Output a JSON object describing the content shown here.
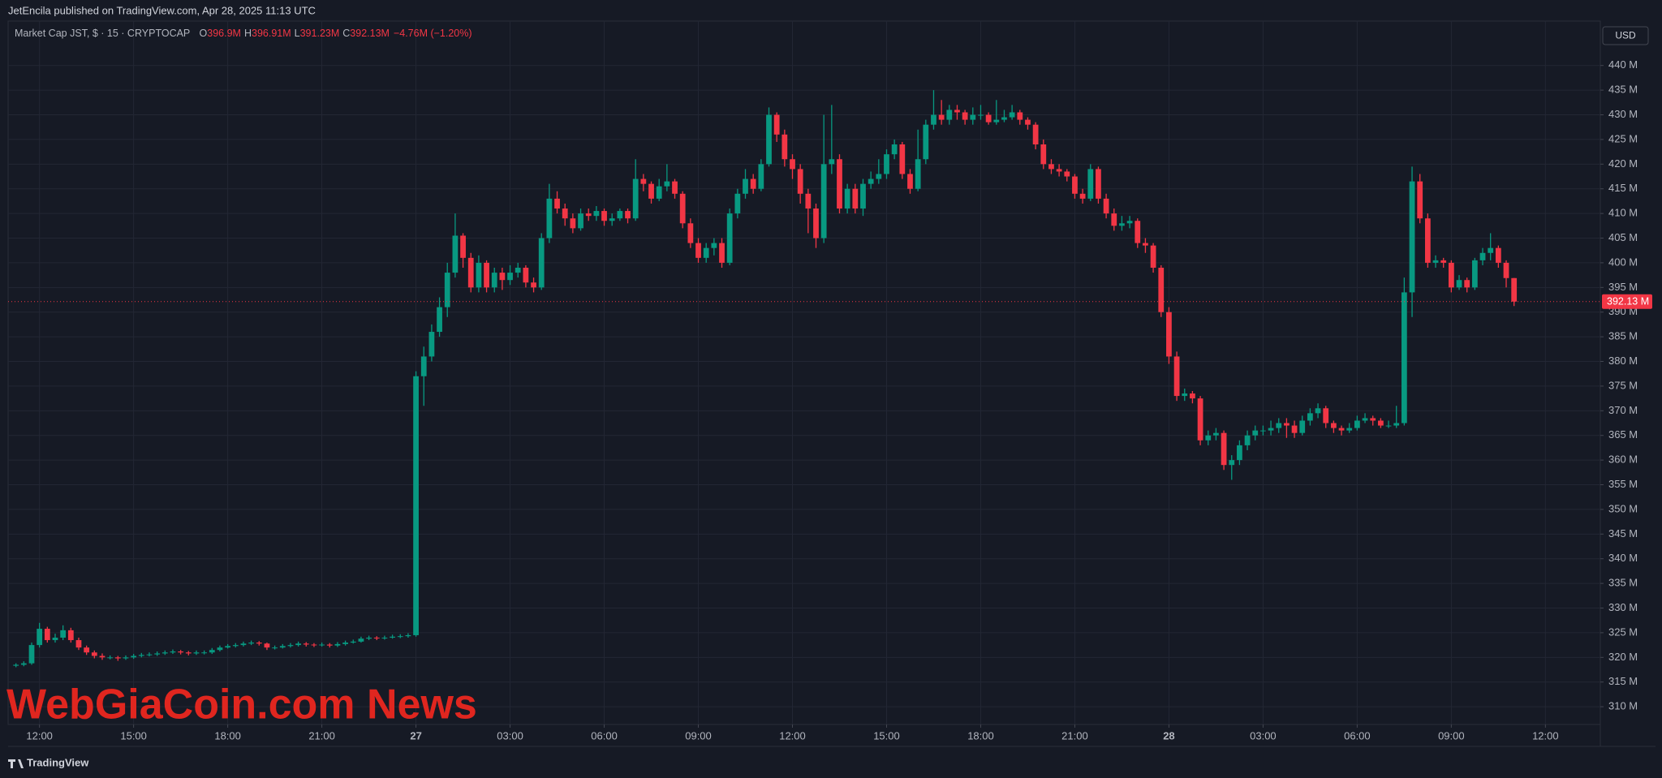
{
  "publisher": "JetEncila published on TradingView.com, Apr 28, 2025 11:13 UTC",
  "brand": "TradingView",
  "watermark": "WebGiaCoin.com News",
  "currency": "USD",
  "chart_data": {
    "type": "candlestick",
    "title": "Market Cap JST, $ · 15 · CRYPTOCAP",
    "ohlc_legend": [
      {
        "key": "O",
        "value": "396.9M"
      },
      {
        "key": "H",
        "value": "396.91M"
      },
      {
        "key": "L",
        "value": "391.23M"
      },
      {
        "key": "C",
        "value": "392.13M"
      }
    ],
    "change": "−4.76M (−1.20%)",
    "up_color": "#089981",
    "down_color": "#f23645",
    "last_price": {
      "value": 392.13,
      "label": "392.13 M"
    },
    "xlim": [
      -1,
      202
    ],
    "xticks": [
      {
        "value": 3,
        "label": "12:00"
      },
      {
        "value": 15,
        "label": "15:00"
      },
      {
        "value": 27,
        "label": "18:00"
      },
      {
        "value": 39,
        "label": "21:00"
      },
      {
        "value": 51,
        "label": "27"
      },
      {
        "value": 63,
        "label": "03:00"
      },
      {
        "value": 75,
        "label": "06:00"
      },
      {
        "value": 87,
        "label": "09:00"
      },
      {
        "value": 99,
        "label": "12:00"
      },
      {
        "value": 111,
        "label": "15:00"
      },
      {
        "value": 123,
        "label": "18:00"
      },
      {
        "value": 135,
        "label": "21:00"
      },
      {
        "value": 147,
        "label": "28"
      },
      {
        "value": 159,
        "label": "03:00"
      },
      {
        "value": 171,
        "label": "06:00"
      },
      {
        "value": 183,
        "label": "09:00"
      },
      {
        "value": 195,
        "label": "12:00"
      }
    ],
    "ylim": [
      306.4,
      449
    ],
    "yticks": [
      {
        "value": 310,
        "label": "310 M"
      },
      {
        "value": 315,
        "label": "315 M"
      },
      {
        "value": 320,
        "label": "320 M"
      },
      {
        "value": 325,
        "label": "325 M"
      },
      {
        "value": 330,
        "label": "330 M"
      },
      {
        "value": 335,
        "label": "335 M"
      },
      {
        "value": 340,
        "label": "340 M"
      },
      {
        "value": 345,
        "label": "345 M"
      },
      {
        "value": 350,
        "label": "350 M"
      },
      {
        "value": 355,
        "label": "355 M"
      },
      {
        "value": 360,
        "label": "360 M"
      },
      {
        "value": 365,
        "label": "365 M"
      },
      {
        "value": 370,
        "label": "370 M"
      },
      {
        "value": 375,
        "label": "375 M"
      },
      {
        "value": 380,
        "label": "380 M"
      },
      {
        "value": 385,
        "label": "385 M"
      },
      {
        "value": 390,
        "label": "390 M"
      },
      {
        "value": 395,
        "label": "395 M"
      },
      {
        "value": 400,
        "label": "400 M"
      },
      {
        "value": 405,
        "label": "405 M"
      },
      {
        "value": 410,
        "label": "410 M"
      },
      {
        "value": 415,
        "label": "415 M"
      },
      {
        "value": 420,
        "label": "420 M"
      },
      {
        "value": 425,
        "label": "425 M"
      },
      {
        "value": 430,
        "label": "430 M"
      },
      {
        "value": 435,
        "label": "435 M"
      },
      {
        "value": 440,
        "label": "440 M"
      }
    ],
    "grid": true,
    "open": [
      318.3,
      318.5,
      318.8,
      322.5,
      325.8,
      323.5,
      324.0,
      325.5,
      323.5,
      322.0,
      321.0,
      320.3,
      320.0,
      320.0,
      319.8,
      320.0,
      320.3,
      320.5,
      320.6,
      320.8,
      321.0,
      321.2,
      321.0,
      320.8,
      321.0,
      321.0,
      321.5,
      322.0,
      322.3,
      322.5,
      322.8,
      323.0,
      322.8,
      322.0,
      322.0,
      322.3,
      322.5,
      322.8,
      322.6,
      322.5,
      322.6,
      322.4,
      322.7,
      323.0,
      323.2,
      323.8,
      324.0,
      323.9,
      324.0,
      324.2,
      324.3,
      324.5,
      377.0,
      381.0,
      386.0,
      391.0,
      398.0,
      405.5,
      401.0,
      395.0,
      400.0,
      395.0,
      398.0,
      396.5,
      398.0,
      399.0,
      396.0,
      395.0,
      405.0,
      413.0,
      411.0,
      409.0,
      407.0,
      410.0,
      409.5,
      410.5,
      408.5,
      409.0,
      410.5,
      409.0,
      417.0,
      416.0,
      413.0,
      415.5,
      416.5,
      414.0,
      408.0,
      404.0,
      401.0,
      403.0,
      404.0,
      400.0,
      410.0,
      414.0,
      417.0,
      415.0,
      420.0,
      430.0,
      426.0,
      421.0,
      419.0,
      414.0,
      411.0,
      405.0,
      420.0,
      421.0,
      411.0,
      415.0,
      411.0,
      416.0,
      417.0,
      418.0,
      422.0,
      424.0,
      418.0,
      415.0,
      421.0,
      428.0,
      430.0,
      429.0,
      431.0,
      430.5,
      429.0,
      430.0,
      430.0,
      428.5,
      429.0,
      429.5,
      430.5,
      429.0,
      428.0,
      424.0,
      420.0,
      419.0,
      418.5,
      417.5,
      414.0,
      413.0,
      419.0,
      413.0,
      410.0,
      407.5,
      408.0,
      408.5,
      404.0,
      403.5,
      399.0,
      390.0,
      381.0,
      373.0,
      373.5,
      372.5,
      364.0,
      365.0,
      365.5,
      359.0,
      360.0,
      363.0,
      365.0,
      366.0,
      366.0,
      366.5,
      367.5,
      367.0,
      365.5,
      368.0,
      369.5,
      370.5,
      367.5,
      366.5,
      366.0,
      366.5,
      368.0,
      368.5,
      368.0,
      367.0,
      367.0,
      367.5,
      394.0,
      416.5,
      409.0,
      400.0,
      400.5,
      400.0,
      395.0,
      396.5,
      395.0,
      400.5,
      402.0,
      403.0,
      400.0,
      396.9
    ],
    "high": [
      318.8,
      319.2,
      323.0,
      327.0,
      326.2,
      324.8,
      326.5,
      326.0,
      324.0,
      322.4,
      321.4,
      320.8,
      320.4,
      320.3,
      320.4,
      320.7,
      320.9,
      321.0,
      321.2,
      321.4,
      321.6,
      321.5,
      321.3,
      321.4,
      321.4,
      321.9,
      322.4,
      322.7,
      322.9,
      323.2,
      323.4,
      323.3,
      323.0,
      322.4,
      322.7,
      322.9,
      323.2,
      323.1,
      322.9,
      323.0,
      322.9,
      323.1,
      323.4,
      323.6,
      324.2,
      324.4,
      324.3,
      324.4,
      324.6,
      324.7,
      324.9,
      378.0,
      383.0,
      387.5,
      393.0,
      400.0,
      410.0,
      406.0,
      402.0,
      401.5,
      400.5,
      399.0,
      399.0,
      399.5,
      400.0,
      399.5,
      397.0,
      406.0,
      416.0,
      414.5,
      412.0,
      410.0,
      411.0,
      411.0,
      411.5,
      411.0,
      410.0,
      411.0,
      411.0,
      421.0,
      418.0,
      416.5,
      417.0,
      420.0,
      417.0,
      414.5,
      409.0,
      405.0,
      404.0,
      405.0,
      405.0,
      411.0,
      415.0,
      419.0,
      418.0,
      421.0,
      431.5,
      430.5,
      427.0,
      422.0,
      420.0,
      415.0,
      412.0,
      430.0,
      432.0,
      422.0,
      416.0,
      416.0,
      417.0,
      418.5,
      421.0,
      423.0,
      425.0,
      424.5,
      419.0,
      427.0,
      429.0,
      435.0,
      433.0,
      432.0,
      432.0,
      431.0,
      431.5,
      432.0,
      430.5,
      433.0,
      431.0,
      432.0,
      431.0,
      429.5,
      428.5,
      425.0,
      421.0,
      420.0,
      419.0,
      418.0,
      415.0,
      420.0,
      419.5,
      414.0,
      411.0,
      409.5,
      409.5,
      409.0,
      405.0,
      404.0,
      399.5,
      391.0,
      382.0,
      374.5,
      374.0,
      373.0,
      366.0,
      366.5,
      366.0,
      361.0,
      364.0,
      366.0,
      367.0,
      367.0,
      368.0,
      368.5,
      368.5,
      368.0,
      369.0,
      370.5,
      371.5,
      371.0,
      368.0,
      367.0,
      367.5,
      369.0,
      369.5,
      369.0,
      368.5,
      368.0,
      371.0,
      397.0,
      419.5,
      418.0,
      410.0,
      401.5,
      401.0,
      400.5,
      397.5,
      397.0,
      401.0,
      403.0,
      406.0,
      403.5,
      400.5,
      396.91
    ],
    "low": [
      318.0,
      318.2,
      318.5,
      322.0,
      323.0,
      323.0,
      323.5,
      323.0,
      321.5,
      320.5,
      319.8,
      319.5,
      319.6,
      319.3,
      319.5,
      319.7,
      320.0,
      320.2,
      320.3,
      320.5,
      320.7,
      320.6,
      320.4,
      320.5,
      320.6,
      320.7,
      321.2,
      321.8,
      322.0,
      322.2,
      322.5,
      322.4,
      321.5,
      321.6,
      321.8,
      322.0,
      322.2,
      322.2,
      322.1,
      322.2,
      322.0,
      322.1,
      322.4,
      322.8,
      323.0,
      323.5,
      323.5,
      323.6,
      323.8,
      323.9,
      324.0,
      324.2,
      371.0,
      380.0,
      385.0,
      389.0,
      397.0,
      399.0,
      394.0,
      394.0,
      394.0,
      394.0,
      394.5,
      395.5,
      397.0,
      395.0,
      394.0,
      394.5,
      404.0,
      410.0,
      407.5,
      406.0,
      406.5,
      408.5,
      408.5,
      407.5,
      407.5,
      408.5,
      408.0,
      408.5,
      414.5,
      412.0,
      412.5,
      414.5,
      413.0,
      407.0,
      403.0,
      400.0,
      400.0,
      401.5,
      399.0,
      399.5,
      409.0,
      413.0,
      414.0,
      414.5,
      419.5,
      424.5,
      419.5,
      417.0,
      412.0,
      406.0,
      403.0,
      404.0,
      418.0,
      410.0,
      410.0,
      410.0,
      409.5,
      415.0,
      416.0,
      417.0,
      421.0,
      417.0,
      414.0,
      414.5,
      420.0,
      427.0,
      428.0,
      428.0,
      429.0,
      428.0,
      428.0,
      429.0,
      428.0,
      428.0,
      428.5,
      429.0,
      428.0,
      427.0,
      423.0,
      419.0,
      418.0,
      417.5,
      416.5,
      413.0,
      412.0,
      412.5,
      412.0,
      409.0,
      406.5,
      406.5,
      407.0,
      403.0,
      402.0,
      398.0,
      389.0,
      379.5,
      372.0,
      372.0,
      371.5,
      363.0,
      363.0,
      364.0,
      358.0,
      356.0,
      359.0,
      362.0,
      364.0,
      365.0,
      365.0,
      365.5,
      364.5,
      364.5,
      365.0,
      367.0,
      368.5,
      366.5,
      365.5,
      365.0,
      365.5,
      366.0,
      367.5,
      367.0,
      366.5,
      366.5,
      366.5,
      367.0,
      389.0,
      408.0,
      399.0,
      399.0,
      399.0,
      394.0,
      394.5,
      394.0,
      394.5,
      399.5,
      400.5,
      399.0,
      395.0,
      391.23
    ],
    "close": [
      318.5,
      318.8,
      322.5,
      325.8,
      323.5,
      324.0,
      325.5,
      323.5,
      322.0,
      321.0,
      320.3,
      320.0,
      320.0,
      319.8,
      320.0,
      320.3,
      320.5,
      320.6,
      320.8,
      321.0,
      321.2,
      321.0,
      320.8,
      321.0,
      321.0,
      321.5,
      322.0,
      322.3,
      322.5,
      322.8,
      323.0,
      322.8,
      322.0,
      322.0,
      322.3,
      322.5,
      322.8,
      322.6,
      322.5,
      322.6,
      322.4,
      322.7,
      323.0,
      323.2,
      323.8,
      324.0,
      323.9,
      324.0,
      324.2,
      324.3,
      324.5,
      377.0,
      381.0,
      386.0,
      391.0,
      398.0,
      405.5,
      401.0,
      395.0,
      400.0,
      395.0,
      398.0,
      396.5,
      398.0,
      399.0,
      396.0,
      395.0,
      405.0,
      413.0,
      411.0,
      409.0,
      407.0,
      410.0,
      409.5,
      410.5,
      408.5,
      409.0,
      410.5,
      409.0,
      417.0,
      416.0,
      413.0,
      415.5,
      416.5,
      414.0,
      408.0,
      404.0,
      401.0,
      403.0,
      404.0,
      400.0,
      410.0,
      414.0,
      417.0,
      415.0,
      420.0,
      430.0,
      426.0,
      421.0,
      419.0,
      414.0,
      411.0,
      405.0,
      420.0,
      421.0,
      411.0,
      415.0,
      411.0,
      416.0,
      417.0,
      418.0,
      422.0,
      424.0,
      418.0,
      415.0,
      421.0,
      428.0,
      430.0,
      429.0,
      431.0,
      430.5,
      429.0,
      430.0,
      430.0,
      428.5,
      429.0,
      429.5,
      430.5,
      429.0,
      428.0,
      424.0,
      420.0,
      419.0,
      418.5,
      417.5,
      414.0,
      413.0,
      419.0,
      413.0,
      410.0,
      407.5,
      408.0,
      408.5,
      404.0,
      403.5,
      399.0,
      390.0,
      381.0,
      373.0,
      373.5,
      372.5,
      364.0,
      365.0,
      365.5,
      359.0,
      360.0,
      363.0,
      365.0,
      366.0,
      366.0,
      366.5,
      367.5,
      367.0,
      365.5,
      368.0,
      369.5,
      370.5,
      367.5,
      366.5,
      366.0,
      366.5,
      368.0,
      368.5,
      368.0,
      367.0,
      367.0,
      367.5,
      394.0,
      416.5,
      409.0,
      400.0,
      400.5,
      400.0,
      395.0,
      396.5,
      395.0,
      400.5,
      402.0,
      403.0,
      400.0,
      396.9,
      392.13
    ]
  }
}
